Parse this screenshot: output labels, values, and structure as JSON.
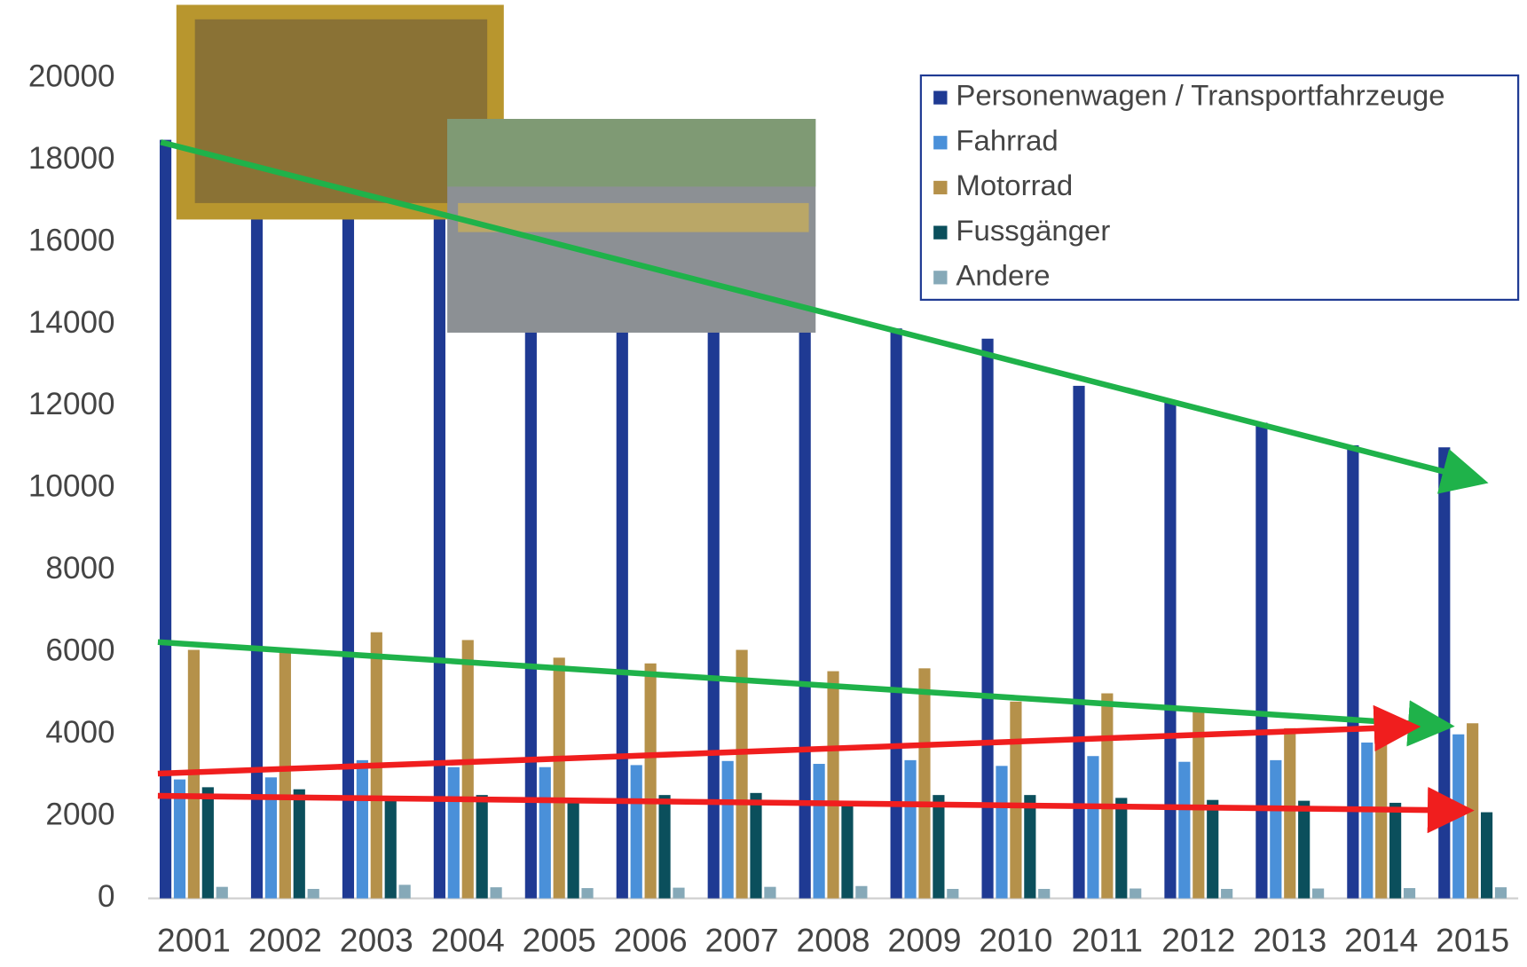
{
  "chart_data": {
    "type": "bar",
    "categories": [
      "2001",
      "2002",
      "2003",
      "2004",
      "2005",
      "2006",
      "2007",
      "2008",
      "2009",
      "2010",
      "2011",
      "2012",
      "2013",
      "2014",
      "2015"
    ],
    "series": [
      {
        "name": "Personenwagen / Transportfahrzeuge",
        "color": "#1f3a93",
        "values": [
          18500,
          18100,
          18000,
          17000,
          15500,
          15400,
          15300,
          14400,
          13900,
          13650,
          12500,
          12150,
          11600,
          11050,
          11000
        ]
      },
      {
        "name": "Fahrrad",
        "color": "#4a90d9",
        "values": [
          2900,
          2950,
          3370,
          3200,
          3200,
          3250,
          3350,
          3280,
          3370,
          3230,
          3470,
          3330,
          3370,
          3800,
          4000
        ]
      },
      {
        "name": "Motorrad",
        "color": "#b5914a",
        "values": [
          6060,
          6100,
          6490,
          6300,
          5870,
          5730,
          6060,
          5540,
          5610,
          4800,
          5000,
          4600,
          4150,
          4100,
          4270
        ]
      },
      {
        "name": "Fussgänger",
        "color": "#0b4f5c",
        "values": [
          2710,
          2660,
          2500,
          2520,
          2350,
          2520,
          2570,
          2300,
          2520,
          2520,
          2450,
          2400,
          2380,
          2330,
          2100
        ]
      },
      {
        "name": "Andere",
        "color": "#86a9b8",
        "values": [
          280,
          230,
          330,
          270,
          250,
          260,
          280,
          300,
          230,
          230,
          240,
          230,
          240,
          250,
          270
        ]
      }
    ],
    "ylim": [
      0,
      20000
    ],
    "yticks": [
      0,
      2000,
      4000,
      6000,
      8000,
      10000,
      12000,
      14000,
      16000,
      18000,
      20000
    ],
    "grid": false,
    "legend": "top-right"
  }
}
